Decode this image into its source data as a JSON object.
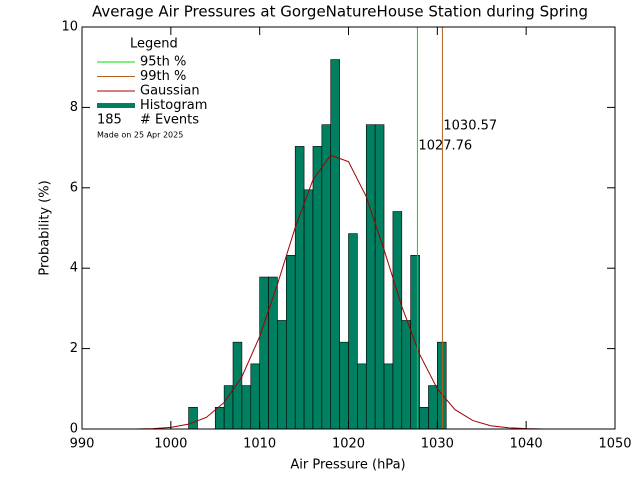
{
  "chart_data": {
    "type": "histogram",
    "title": "Average Air Pressures at GorgeNatureHouse Station during Spring",
    "xlabel": "Air Pressure (hPa)",
    "ylabel": "Probability (%)",
    "bins": [
      1002,
      1003,
      1004,
      1005,
      1006,
      1007,
      1008,
      1009,
      1010,
      1011,
      1012,
      1013,
      1014,
      1015,
      1016,
      1017,
      1018,
      1019,
      1020,
      1021,
      1022,
      1023,
      1024,
      1025,
      1026,
      1027,
      1028,
      1029,
      1030,
      1031
    ],
    "values": [
      0.54,
      0,
      0,
      0.54,
      1.08,
      2.16,
      1.08,
      1.62,
      3.78,
      3.78,
      2.7,
      4.32,
      7.03,
      5.95,
      7.03,
      7.57,
      9.19,
      2.16,
      4.86,
      1.62,
      7.57,
      7.57,
      1.62,
      5.41,
      2.7,
      4.32,
      0.54,
      1.08,
      2.16
    ],
    "color": "#008060",
    "gaussian": {
      "name": "Gaussian",
      "color": "#a00000",
      "x": [
        994,
        996,
        998,
        1000,
        1002,
        1004,
        1006,
        1008,
        1010,
        1012,
        1014,
        1016,
        1018,
        1020,
        1022,
        1024,
        1026,
        1028,
        1030,
        1032,
        1034,
        1036,
        1038,
        1040,
        1042,
        1044
      ],
      "values": [
        0,
        0,
        0.01,
        0.04,
        0.12,
        0.29,
        0.66,
        1.3,
        2.3,
        3.6,
        5.01,
        6.2,
        6.81,
        6.65,
        5.78,
        4.46,
        3.05,
        1.86,
        1.0,
        0.48,
        0.21,
        0.08,
        0.03,
        0.01,
        0,
        0
      ]
    },
    "percentiles": [
      {
        "name": "95th %",
        "value": 1027.76,
        "color": "#00dd00"
      },
      {
        "name": "99th %",
        "value": 1030.57,
        "color": "#b06020"
      }
    ],
    "legend_title": "Legend",
    "histogram_label": "Histogram",
    "events": 185,
    "events_label": "# Events",
    "made_on": "Made on 25 Apr 2025",
    "xlim": [
      990,
      1050
    ],
    "xticks": [
      990,
      1000,
      1010,
      1020,
      1030,
      1040,
      1050
    ],
    "ylim": [
      0,
      10
    ],
    "yticks": [
      0,
      2,
      4,
      6,
      8,
      10
    ]
  }
}
